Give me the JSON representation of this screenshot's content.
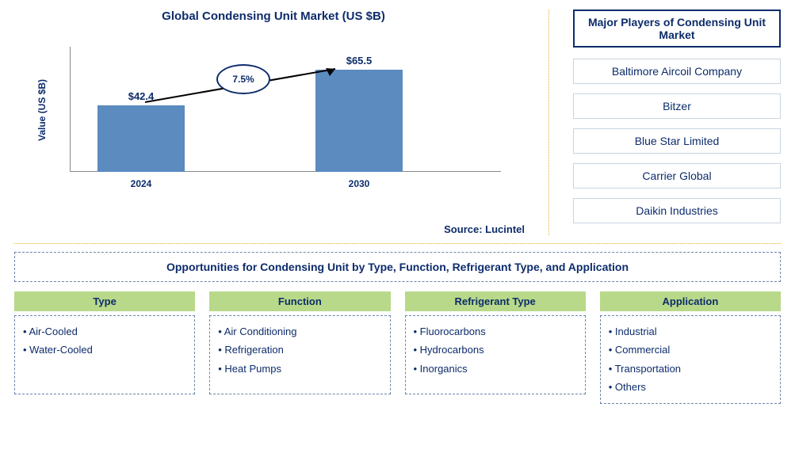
{
  "chart": {
    "title": "Global Condensing Unit Market (US $B)",
    "y_axis_label": "Value (US $B)",
    "type": "bar",
    "categories": [
      "2024",
      "2030"
    ],
    "values": [
      42.4,
      65.5
    ],
    "value_labels": [
      "$42.4",
      "$65.5"
    ],
    "max_value": 80,
    "bar_color": "#5b8bbf",
    "growth_rate": "7.5%",
    "axis_color": "#888888",
    "text_color": "#0d2c6b",
    "background_color": "#ffffff"
  },
  "source": "Source: Lucintel",
  "players": {
    "title": "Major Players of Condensing Unit Market",
    "list": [
      "Baltimore Aircoil Company",
      "Bitzer",
      "Blue Star Limited",
      "Carrier Global",
      "Daikin Industries"
    ],
    "title_border": "#0d2c6b",
    "box_border": "#c9d4e0"
  },
  "opportunities": {
    "title": "Opportunities for Condensing Unit by Type, Function, Refrigerant Type, and Application",
    "header_bg": "#b8d989",
    "columns": [
      {
        "header": "Type",
        "items": [
          "Air-Cooled",
          "Water-Cooled"
        ]
      },
      {
        "header": "Function",
        "items": [
          "Air Conditioning",
          "Refrigeration",
          "Heat Pumps"
        ]
      },
      {
        "header": "Refrigerant Type",
        "items": [
          "Fluorocarbons",
          "Hydrocarbons",
          "Inorganics"
        ]
      },
      {
        "header": "Application",
        "items": [
          "Industrial",
          "Commercial",
          "Transportation",
          "Others"
        ]
      }
    ]
  },
  "divider_color": "#e8b020"
}
